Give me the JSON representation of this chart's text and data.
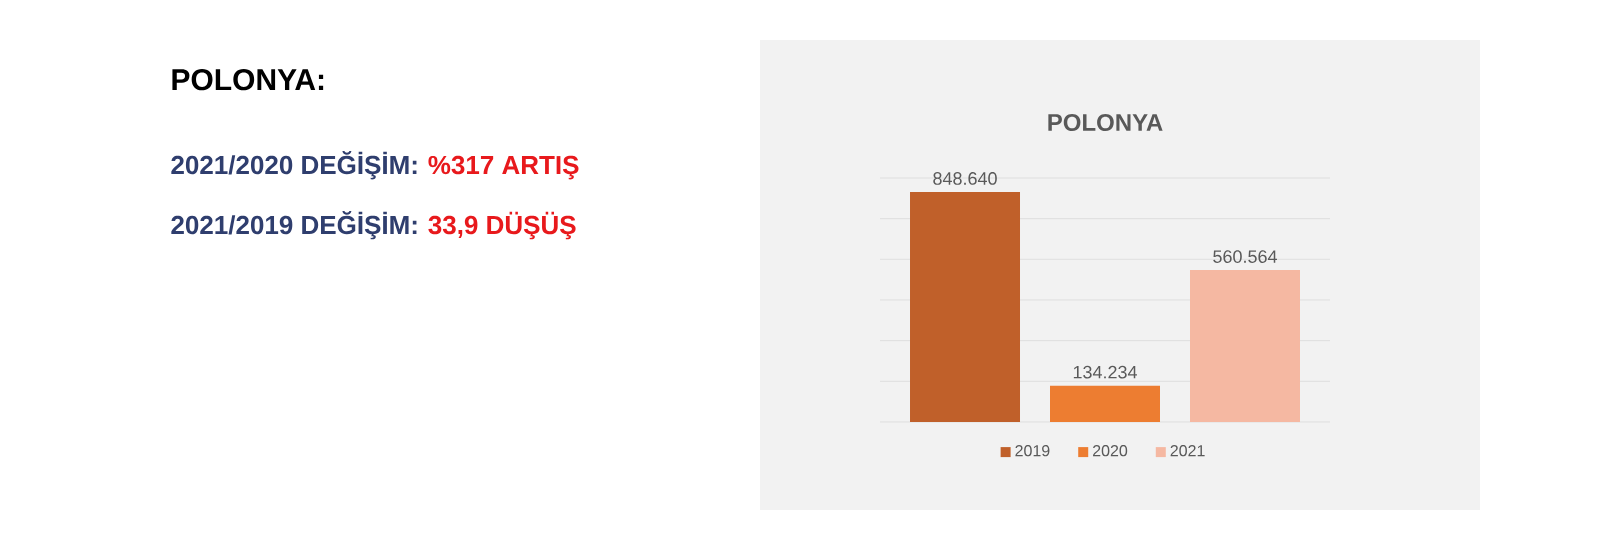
{
  "chart_data": {
    "type": "bar",
    "title": "POLONYA",
    "categories": [
      null
    ],
    "series": [
      {
        "name": "2019",
        "color": "#c0602a",
        "values": [
          848640
        ],
        "value_labels": [
          "848.640"
        ]
      },
      {
        "name": "2020",
        "color": "#ed7d31",
        "values": [
          134234
        ],
        "value_labels": [
          "134.234"
        ]
      },
      {
        "name": "2021",
        "color": "#f5b8a2",
        "values": [
          560564
        ],
        "value_labels": [
          "560.564"
        ]
      }
    ],
    "ylim": [
      0,
      900000
    ],
    "yticks": [
      {
        "value": 0,
        "label": null
      },
      {
        "value": 150000,
        "label": null
      },
      {
        "value": 300000,
        "label": null
      },
      {
        "value": 450000,
        "label": null
      },
      {
        "value": 600000,
        "label": null
      },
      {
        "value": 750000,
        "label": null
      },
      {
        "value": 900000,
        "label": null
      }
    ],
    "grid": "y",
    "legend": "bottom",
    "annotations": [
      "POLONYA:",
      "2021/2020 DEĞİŞİM:",
      "%317 ARTIŞ",
      "2021/2019 DEĞİŞİM:",
      "33,9 DÜŞÜŞ"
    ]
  }
}
